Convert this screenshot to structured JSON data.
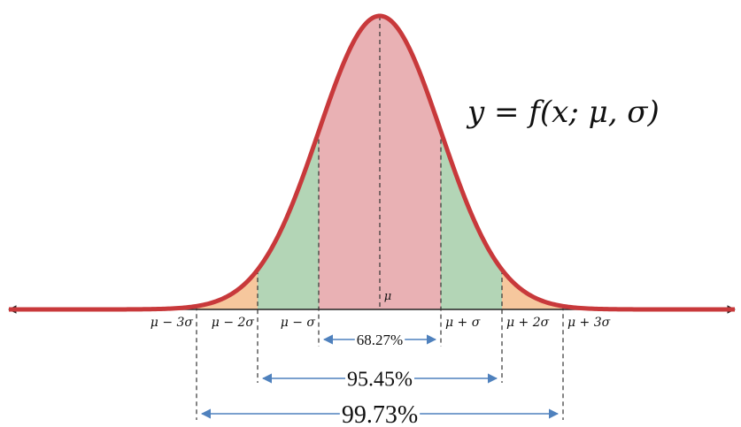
{
  "equation": "y = f(x; μ, σ)",
  "mu_label": "μ",
  "tick_labels": [
    "μ − 3σ",
    "μ − 2σ",
    "μ − σ",
    "μ + σ",
    "μ + 2σ",
    "μ + 3σ"
  ],
  "intervals": [
    {
      "label": "68.27%",
      "from_sigma": -1,
      "to_sigma": 1
    },
    {
      "label": "95.45%",
      "from_sigma": -2,
      "to_sigma": 2
    },
    {
      "label": "99.73%",
      "from_sigma": -3,
      "to_sigma": 3
    }
  ],
  "colors": {
    "curve": "#c8393b",
    "one_sigma": "#e9b1b4",
    "two_sigma": "#b3d5b6",
    "three_sigma": "#f6c79d",
    "arrow": "#4f81bd",
    "axis": "#222222"
  }
}
